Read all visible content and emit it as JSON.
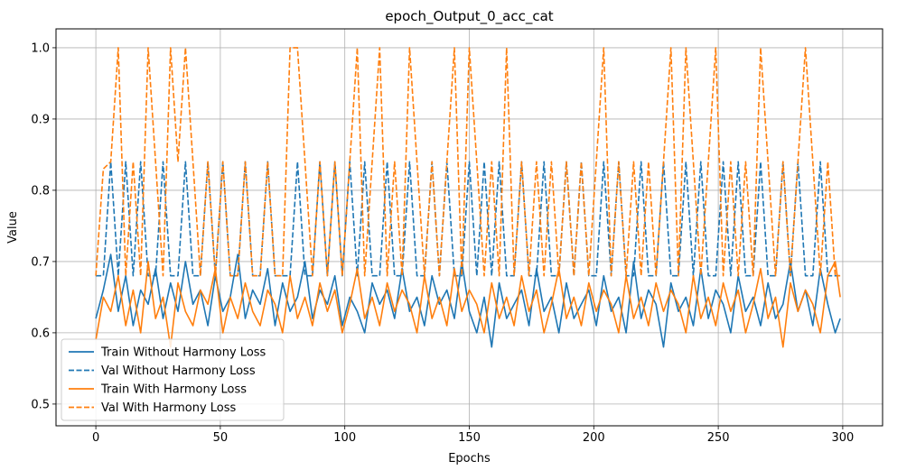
{
  "chart_data": {
    "type": "line",
    "title": "epoch_Output_0_acc_cat",
    "xlabel": "Epochs",
    "ylabel": "Value",
    "xlim": [
      -16,
      316
    ],
    "ylim": [
      0.4695,
      1.0265
    ],
    "xticks": [
      0,
      50,
      100,
      150,
      200,
      250,
      300
    ],
    "xtick_labels": [
      "0",
      "50",
      "100",
      "150",
      "200",
      "250",
      "300"
    ],
    "yticks": [
      0.5,
      0.6,
      0.7,
      0.8,
      0.9,
      1.0
    ],
    "ytick_labels": [
      "0.5",
      "0.6",
      "0.7",
      "0.8",
      "0.9",
      "1.0"
    ],
    "grid": true,
    "legend_position": "lower-left",
    "x": [
      0,
      3,
      6,
      9,
      12,
      15,
      18,
      21,
      24,
      27,
      30,
      33,
      36,
      39,
      42,
      45,
      48,
      51,
      54,
      57,
      60,
      63,
      66,
      69,
      72,
      75,
      78,
      81,
      84,
      87,
      90,
      93,
      96,
      99,
      102,
      105,
      108,
      111,
      114,
      117,
      120,
      123,
      126,
      129,
      132,
      135,
      138,
      141,
      144,
      147,
      150,
      153,
      156,
      159,
      162,
      165,
      168,
      171,
      174,
      177,
      180,
      183,
      186,
      189,
      192,
      195,
      198,
      201,
      204,
      207,
      210,
      213,
      216,
      219,
      222,
      225,
      228,
      231,
      234,
      237,
      240,
      243,
      246,
      249,
      252,
      255,
      258,
      261,
      264,
      267,
      270,
      273,
      276,
      279,
      282,
      285,
      288,
      291,
      294,
      297,
      299
    ],
    "series": [
      {
        "name": "Train Without Harmony Loss",
        "color": "#1f77b4",
        "dashed": false,
        "values": [
          0.62,
          0.66,
          0.71,
          0.63,
          0.68,
          0.61,
          0.66,
          0.64,
          0.69,
          0.62,
          0.67,
          0.63,
          0.7,
          0.64,
          0.66,
          0.61,
          0.68,
          0.63,
          0.65,
          0.71,
          0.62,
          0.66,
          0.64,
          0.69,
          0.61,
          0.67,
          0.63,
          0.65,
          0.7,
          0.62,
          0.66,
          0.64,
          0.68,
          0.61,
          0.65,
          0.63,
          0.6,
          0.67,
          0.64,
          0.66,
          0.62,
          0.69,
          0.63,
          0.65,
          0.61,
          0.68,
          0.64,
          0.66,
          0.62,
          0.7,
          0.63,
          0.6,
          0.65,
          0.58,
          0.67,
          0.62,
          0.64,
          0.66,
          0.61,
          0.69,
          0.63,
          0.65,
          0.6,
          0.67,
          0.62,
          0.64,
          0.66,
          0.61,
          0.68,
          0.63,
          0.65,
          0.6,
          0.7,
          0.62,
          0.66,
          0.64,
          0.58,
          0.67,
          0.63,
          0.65,
          0.61,
          0.69,
          0.62,
          0.66,
          0.64,
          0.6,
          0.68,
          0.63,
          0.65,
          0.61,
          0.67,
          0.62,
          0.64,
          0.7,
          0.63,
          0.66,
          0.61,
          0.69,
          0.64,
          0.6,
          0.62
        ]
      },
      {
        "name": "Val Without Harmony Loss",
        "color": "#1f77b4",
        "dashed": true,
        "values": [
          0.68,
          0.68,
          0.84,
          0.68,
          0.84,
          0.68,
          0.84,
          0.68,
          0.68,
          0.84,
          0.68,
          0.68,
          0.84,
          0.68,
          0.68,
          0.84,
          0.68,
          0.84,
          0.68,
          0.68,
          0.84,
          0.68,
          0.68,
          0.84,
          0.68,
          0.68,
          0.68,
          0.84,
          0.68,
          0.68,
          0.84,
          0.68,
          0.84,
          0.68,
          0.84,
          0.68,
          0.84,
          0.68,
          0.68,
          0.84,
          0.68,
          0.68,
          0.84,
          0.68,
          0.68,
          0.84,
          0.68,
          0.84,
          0.68,
          0.68,
          0.84,
          0.68,
          0.84,
          0.68,
          0.84,
          0.68,
          0.68,
          0.84,
          0.68,
          0.68,
          0.84,
          0.68,
          0.68,
          0.84,
          0.68,
          0.84,
          0.68,
          0.68,
          0.84,
          0.68,
          0.84,
          0.68,
          0.68,
          0.84,
          0.68,
          0.68,
          0.84,
          0.68,
          0.68,
          0.84,
          0.68,
          0.84,
          0.68,
          0.68,
          0.84,
          0.68,
          0.84,
          0.68,
          0.68,
          0.84,
          0.68,
          0.68,
          0.84,
          0.68,
          0.84,
          0.68,
          0.68,
          0.84,
          0.68,
          0.68,
          0.68
        ]
      },
      {
        "name": "Train With Harmony Loss",
        "color": "#ff7f0e",
        "dashed": false,
        "values": [
          0.59,
          0.65,
          0.63,
          0.68,
          0.61,
          0.66,
          0.6,
          0.7,
          0.62,
          0.65,
          0.58,
          0.67,
          0.63,
          0.61,
          0.66,
          0.64,
          0.69,
          0.6,
          0.65,
          0.62,
          0.67,
          0.63,
          0.61,
          0.66,
          0.64,
          0.6,
          0.68,
          0.62,
          0.65,
          0.61,
          0.67,
          0.63,
          0.66,
          0.6,
          0.64,
          0.69,
          0.62,
          0.65,
          0.61,
          0.67,
          0.63,
          0.66,
          0.64,
          0.6,
          0.68,
          0.62,
          0.65,
          0.61,
          0.69,
          0.63,
          0.66,
          0.64,
          0.6,
          0.67,
          0.62,
          0.65,
          0.61,
          0.68,
          0.63,
          0.66,
          0.6,
          0.64,
          0.69,
          0.62,
          0.65,
          0.61,
          0.67,
          0.63,
          0.66,
          0.64,
          0.6,
          0.68,
          0.62,
          0.65,
          0.61,
          0.67,
          0.63,
          0.66,
          0.64,
          0.6,
          0.68,
          0.62,
          0.65,
          0.61,
          0.67,
          0.63,
          0.66,
          0.6,
          0.64,
          0.69,
          0.62,
          0.65,
          0.58,
          0.67,
          0.63,
          0.66,
          0.64,
          0.6,
          0.68,
          0.7,
          0.65
        ]
      },
      {
        "name": "Val With Harmony Loss",
        "color": "#ff7f0e",
        "dashed": true,
        "values": [
          0.68,
          0.83,
          0.84,
          1.0,
          0.68,
          0.84,
          0.68,
          1.0,
          0.84,
          0.68,
          1.0,
          0.84,
          1.0,
          0.84,
          0.68,
          0.84,
          0.68,
          0.84,
          0.68,
          0.68,
          0.84,
          0.68,
          0.68,
          0.84,
          0.68,
          0.68,
          1.0,
          1.0,
          0.84,
          0.68,
          0.84,
          0.68,
          0.84,
          0.68,
          0.84,
          1.0,
          0.68,
          0.84,
          1.0,
          0.68,
          0.84,
          0.68,
          1.0,
          0.84,
          0.68,
          0.84,
          0.68,
          0.84,
          1.0,
          0.68,
          1.0,
          0.84,
          0.68,
          0.84,
          0.68,
          1.0,
          0.68,
          0.84,
          0.68,
          0.84,
          0.68,
          0.84,
          0.68,
          0.84,
          0.68,
          0.84,
          0.68,
          0.84,
          1.0,
          0.68,
          0.84,
          0.68,
          0.84,
          0.68,
          0.84,
          0.68,
          0.84,
          1.0,
          0.68,
          1.0,
          0.84,
          0.68,
          0.84,
          1.0,
          0.68,
          0.84,
          0.68,
          0.84,
          0.68,
          1.0,
          0.84,
          0.68,
          0.84,
          0.68,
          0.84,
          1.0,
          0.84,
          0.68,
          0.84,
          0.68,
          0.68
        ]
      }
    ]
  }
}
